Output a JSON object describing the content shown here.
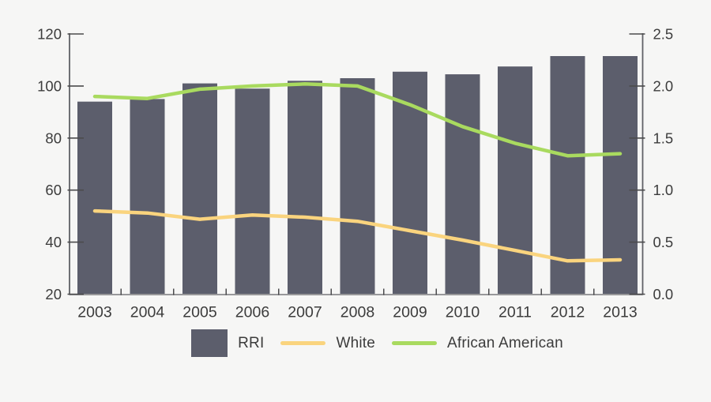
{
  "chart_data": {
    "type": "bar+line combo",
    "categories": [
      "2003",
      "2004",
      "2005",
      "2006",
      "2007",
      "2008",
      "2009",
      "2010",
      "2011",
      "2012",
      "2013"
    ],
    "series": [
      {
        "name": "RRI",
        "type": "bar",
        "axis": "left",
        "color": "#5c5e6c",
        "values": [
          94,
          95,
          101,
          99,
          102,
          103,
          105.5,
          104.5,
          107.5,
          111.5,
          111.5
        ]
      },
      {
        "name": "White",
        "type": "line",
        "axis": "right",
        "color": "#fad47e",
        "values": [
          0.8,
          0.78,
          0.72,
          0.76,
          0.74,
          0.7,
          0.61,
          0.52,
          0.42,
          0.32,
          0.33
        ]
      },
      {
        "name": "African American",
        "type": "line",
        "axis": "right",
        "color": "#a9da5f",
        "values": [
          1.9,
          1.88,
          1.97,
          2.0,
          2.02,
          2.0,
          1.82,
          1.61,
          1.45,
          1.33,
          1.35
        ]
      }
    ],
    "title": "",
    "xlabel": "",
    "ylabel_left": "",
    "ylabel_right": "",
    "left_axis": {
      "min": 20,
      "max": 120,
      "tick_labels": [
        "120",
        "100",
        "80",
        "60",
        "40",
        "20"
      ]
    },
    "right_axis": {
      "min": 0,
      "max": 2.5,
      "tick_labels": [
        "2.5",
        "2.0",
        "1.5",
        "1.0",
        "0.5",
        "0.0"
      ]
    },
    "grid": false,
    "legend_position": "bottom"
  },
  "legend": {
    "items": [
      {
        "label": "RRI"
      },
      {
        "label": "White"
      },
      {
        "label": "African American"
      }
    ]
  },
  "colors": {
    "background": "#f6f6f5",
    "bar": "#5c5e6c",
    "white_line": "#fad47e",
    "african_american_line": "#a9da5f",
    "axis_line": "#606166",
    "bottom_axis_line": "#98989a",
    "tick": "#4b4b4d",
    "text": "#3c3c3c"
  }
}
